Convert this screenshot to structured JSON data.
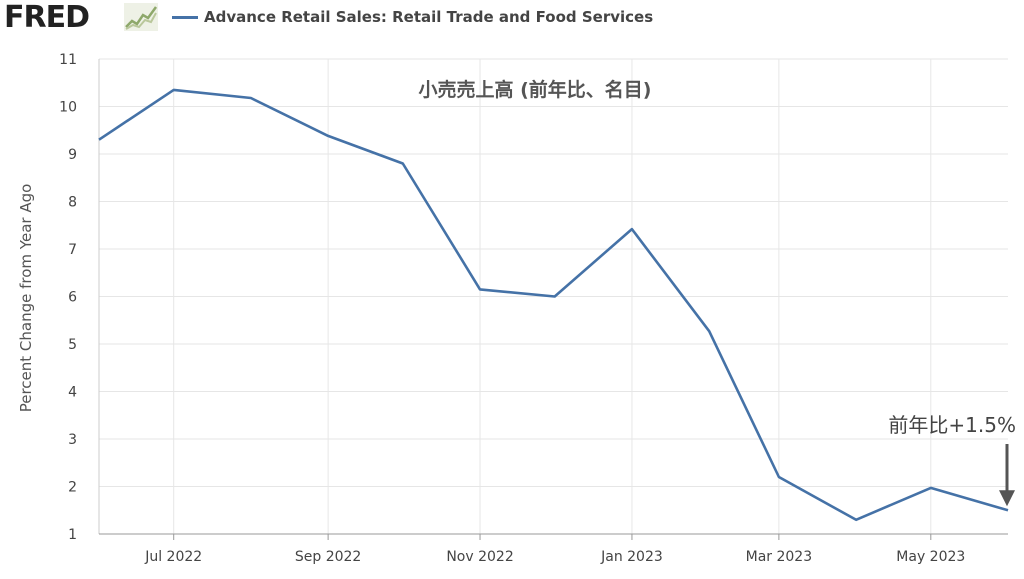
{
  "header": {
    "logo_text": "FRED",
    "logo_mark": "chart-line-icon",
    "legend_label": "Advance Retail Sales: Retail Trade and Food Services"
  },
  "chart_data": {
    "type": "line",
    "title": "小売売上高 (前年比、名目)",
    "ylabel": "Percent Change from Year Ago",
    "xlabel": "",
    "ylim": [
      1,
      11
    ],
    "xlim": [
      "2022-06-01",
      "2023-06-01"
    ],
    "yticks": [
      1,
      2,
      3,
      4,
      5,
      6,
      7,
      8,
      9,
      10,
      11
    ],
    "xticks": [
      {
        "date": "2022-07-01",
        "label": "Jul 2022"
      },
      {
        "date": "2022-09-01",
        "label": "Sep 2022"
      },
      {
        "date": "2022-11-01",
        "label": "Nov 2022"
      },
      {
        "date": "2023-01-01",
        "label": "Jan 2023"
      },
      {
        "date": "2023-03-01",
        "label": "Mar 2023"
      },
      {
        "date": "2023-05-01",
        "label": "May 2023"
      }
    ],
    "grid": true,
    "legend": "top",
    "series": [
      {
        "name": "Advance Retail Sales: Retail Trade and Food Services",
        "color": "#4572a7",
        "x": [
          "2022-06-01",
          "2022-07-01",
          "2022-08-01",
          "2022-09-01",
          "2022-10-01",
          "2022-11-01",
          "2022-12-01",
          "2023-01-01",
          "2023-02-01",
          "2023-03-01",
          "2023-04-01",
          "2023-05-01",
          "2023-06-01"
        ],
        "values": [
          9.3,
          10.35,
          10.18,
          9.38,
          8.8,
          6.15,
          6.0,
          7.42,
          5.27,
          2.2,
          1.3,
          1.97,
          1.5
        ]
      }
    ],
    "annotations": [
      {
        "text": "前年比+1.5%",
        "x": "2023-06-01",
        "y": 1.5,
        "arrow": "down"
      }
    ]
  }
}
